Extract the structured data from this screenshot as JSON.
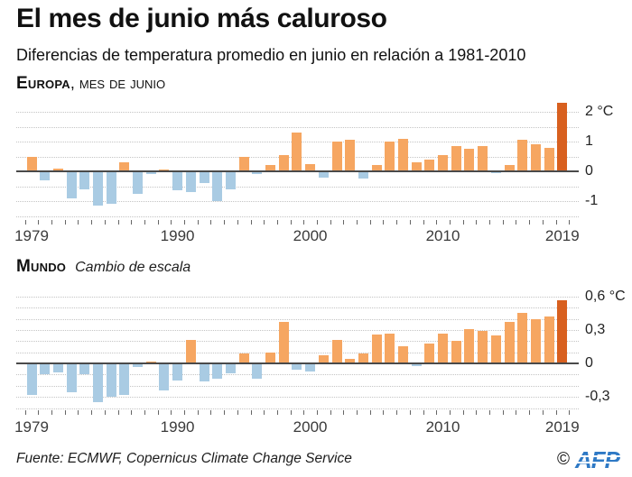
{
  "header": {
    "title": "El mes de junio más caluroso",
    "subtitle": "Diferencias de temperatura promedio en junio en relación a 1981-2010"
  },
  "footer": {
    "source": "Fuente: ECMWF, Copernicus Climate Change Service",
    "copyright": "©",
    "logo_text": "AFP"
  },
  "colors": {
    "positive": "#f6a661",
    "negative": "#a9cbe3",
    "highlight": "#d8601f",
    "grid": "#c4c4c4",
    "zero_line": "#4a4a4a",
    "afp_blue": "#2e79c5"
  },
  "chart_data": [
    {
      "type": "bar",
      "title": "Europa",
      "note": ", mes de junio",
      "unit": "°C",
      "x": [
        1979,
        1980,
        1981,
        1982,
        1983,
        1984,
        1985,
        1986,
        1987,
        1988,
        1989,
        1990,
        1991,
        1992,
        1993,
        1994,
        1995,
        1996,
        1997,
        1998,
        1999,
        2000,
        2001,
        2002,
        2003,
        2004,
        2005,
        2006,
        2007,
        2008,
        2009,
        2010,
        2011,
        2012,
        2013,
        2014,
        2015,
        2016,
        2017,
        2018,
        2019
      ],
      "values": [
        0.5,
        -0.3,
        0.1,
        -0.9,
        -0.6,
        -1.15,
        -1.1,
        0.3,
        -0.75,
        -0.1,
        0.05,
        -0.65,
        -0.7,
        -0.4,
        -1.0,
        -0.6,
        0.5,
        -0.1,
        0.2,
        0.55,
        1.3,
        0.25,
        -0.2,
        1.0,
        1.05,
        -0.25,
        0.2,
        1.0,
        1.1,
        0.3,
        0.4,
        0.55,
        0.85,
        0.75,
        0.85,
        -0.05,
        0.2,
        1.05,
        0.9,
        0.8,
        2.3
      ],
      "ylim": [
        -1.5,
        2.45
      ],
      "grid": {
        "max": 2.0,
        "min": -1.5,
        "step": 0.5
      },
      "yticks": [
        {
          "v": 2,
          "label": "2 °C"
        },
        {
          "v": 1,
          "label": "1"
        },
        {
          "v": 0,
          "label": "0"
        },
        {
          "v": -1,
          "label": "-1"
        }
      ],
      "xticks": [
        {
          "x": 1979,
          "label": "1979"
        },
        {
          "x": 1990,
          "label": "1990"
        },
        {
          "x": 2000,
          "label": "2000"
        },
        {
          "x": 2010,
          "label": "2010"
        },
        {
          "x": 2019,
          "label": "2019"
        }
      ],
      "highlight_x": 2019,
      "legend": null
    },
    {
      "type": "bar",
      "title": "Mundo",
      "note": "Cambio de escala",
      "unit": "°C",
      "x": [
        1979,
        1980,
        1981,
        1982,
        1983,
        1984,
        1985,
        1986,
        1987,
        1988,
        1989,
        1990,
        1991,
        1992,
        1993,
        1994,
        1995,
        1996,
        1997,
        1998,
        1999,
        2000,
        2001,
        2002,
        2003,
        2004,
        2005,
        2006,
        2007,
        2008,
        2009,
        2010,
        2011,
        2012,
        2013,
        2014,
        2015,
        2016,
        2017,
        2018,
        2019
      ],
      "values": [
        -0.28,
        -0.1,
        -0.08,
        -0.26,
        -0.1,
        -0.35,
        -0.3,
        -0.28,
        -0.03,
        0.02,
        -0.24,
        -0.15,
        0.21,
        -0.16,
        -0.14,
        -0.09,
        0.09,
        -0.14,
        0.1,
        0.37,
        -0.06,
        -0.07,
        0.07,
        0.21,
        0.04,
        0.09,
        0.26,
        0.27,
        0.15,
        -0.02,
        0.18,
        0.27,
        0.2,
        0.31,
        0.29,
        0.25,
        0.37,
        0.45,
        0.4,
        0.42,
        0.57
      ],
      "ylim": [
        -0.4,
        0.62
      ],
      "grid": {
        "max": 0.6,
        "min": -0.4,
        "step": 0.1
      },
      "yticks": [
        {
          "v": 0.6,
          "label": "0,6 °C"
        },
        {
          "v": 0.3,
          "label": "0,3"
        },
        {
          "v": 0,
          "label": "0"
        },
        {
          "v": -0.3,
          "label": "-0,3"
        }
      ],
      "xticks": [
        {
          "x": 1979,
          "label": "1979"
        },
        {
          "x": 1990,
          "label": "1990"
        },
        {
          "x": 2000,
          "label": "2000"
        },
        {
          "x": 2010,
          "label": "2010"
        },
        {
          "x": 2019,
          "label": "2019"
        }
      ],
      "highlight_x": 2019,
      "legend": null
    }
  ]
}
